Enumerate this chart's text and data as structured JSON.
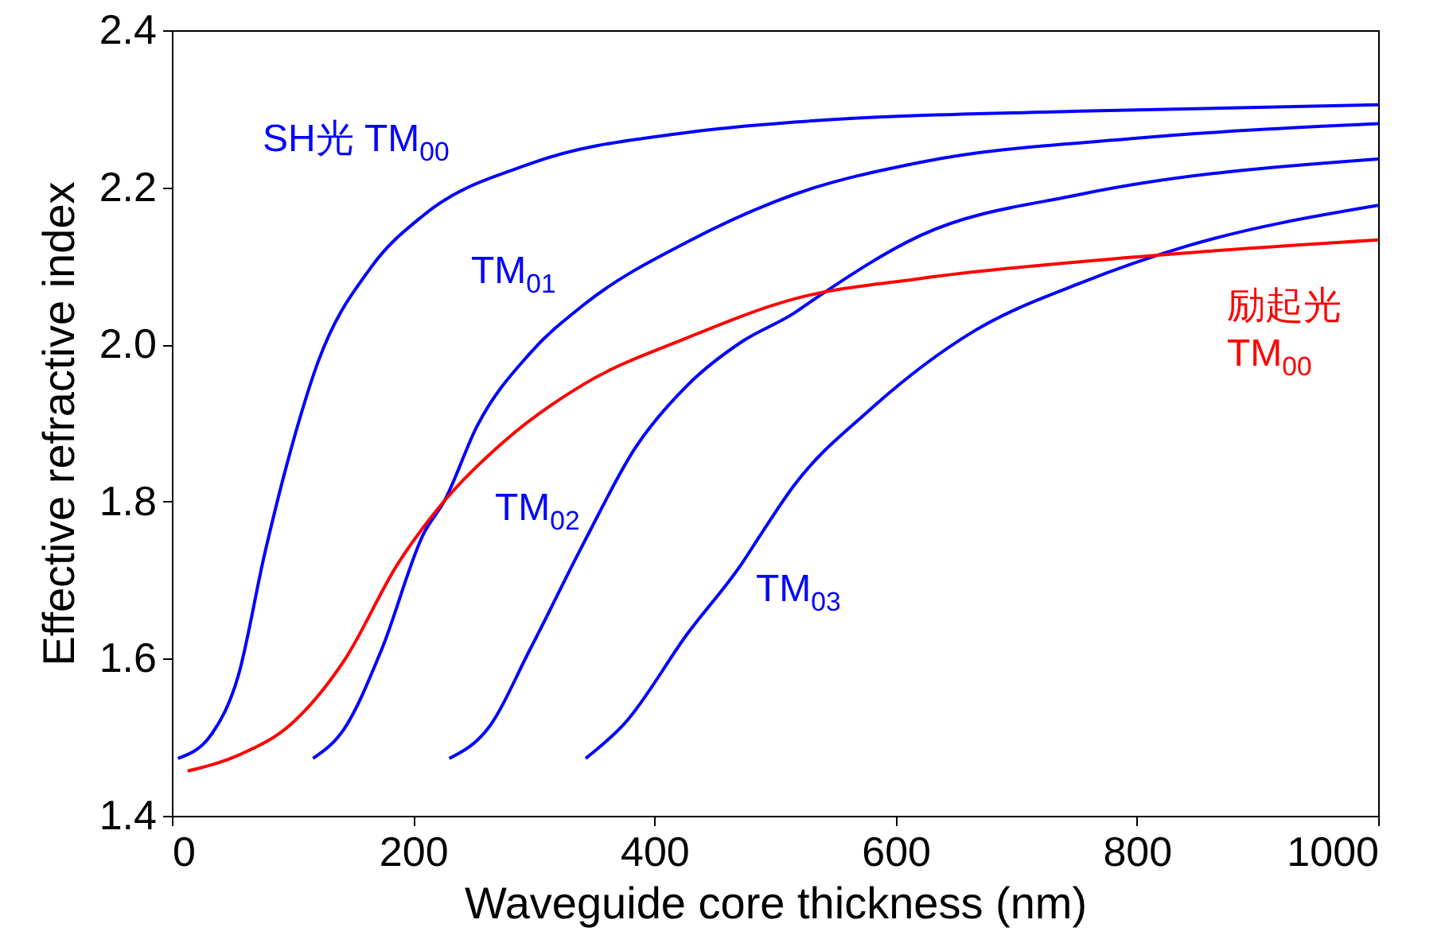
{
  "chart_data": {
    "type": "line",
    "xlabel": "Waveguide core thickness (nm)",
    "ylabel": "Effective refractive index",
    "xlim": [
      0,
      1000
    ],
    "xticks": [
      0,
      200,
      400,
      600,
      800,
      {
        "value": 1000,
        "label": "1000"
      }
    ],
    "ylim": [
      1.4,
      2.4
    ],
    "yticks": [
      1.4,
      1.6,
      1.8,
      {
        "value": 2.0,
        "label": "2.0"
      },
      2.2,
      2.4
    ],
    "grid": false,
    "marker": "none",
    "line_style": "solid",
    "series": [
      {
        "color": "#0000ff",
        "x": [
          5,
          33,
          55,
          77,
          99,
          121,
          165,
          209,
          297,
          428,
          516,
          753,
          1000
        ],
        "values": [
          1.473,
          1.504,
          1.578,
          1.734,
          1.868,
          1.977,
          2.098,
          2.165,
          2.23,
          2.27,
          2.283,
          2.297,
          2.305
        ]
      },
      {
        "color": "#0000ff",
        "x": [
          117,
          143,
          174,
          209,
          226,
          253,
          297,
          341,
          428,
          516,
          621,
          796,
          1000
        ],
        "values": [
          1.473,
          1.511,
          1.612,
          1.76,
          1.801,
          1.896,
          1.989,
          2.05,
          2.131,
          2.191,
          2.232,
          2.262,
          2.281
        ]
      },
      {
        "color": "#0000ff",
        "x": [
          230,
          262,
          297,
          341,
          384,
          428,
          472,
          516,
          533,
          621,
          753,
          1000
        ],
        "values": [
          1.473,
          1.511,
          1.612,
          1.746,
          1.868,
          1.949,
          2.003,
          2.04,
          2.058,
          2.139,
          2.191,
          2.236
        ]
      },
      {
        "color": "#0000ff",
        "x": [
          343,
          375,
          428,
          472,
          489,
          516,
          578,
          665,
          753,
          841,
          1000
        ],
        "values": [
          1.473,
          1.517,
          1.633,
          1.72,
          1.76,
          1.821,
          1.916,
          2.017,
          2.078,
          2.125,
          2.177
        ]
      },
      {
        "color": "#ff0000",
        "x": [
          13,
          55,
          99,
          143,
          187,
          226,
          275,
          341,
          428,
          516,
          621,
          796,
          1000
        ],
        "values": [
          1.457,
          1.477,
          1.517,
          1.598,
          1.72,
          1.801,
          1.876,
          1.949,
          2.009,
          2.058,
          2.084,
          2.111,
          2.133
        ]
      }
    ],
    "annotations": [
      "SH光 TM$_{00}$",
      "TM$_{01}$",
      "TM$_{02}$",
      "TM$_{03}$",
      "励起光 TM$_{00}$"
    ]
  }
}
